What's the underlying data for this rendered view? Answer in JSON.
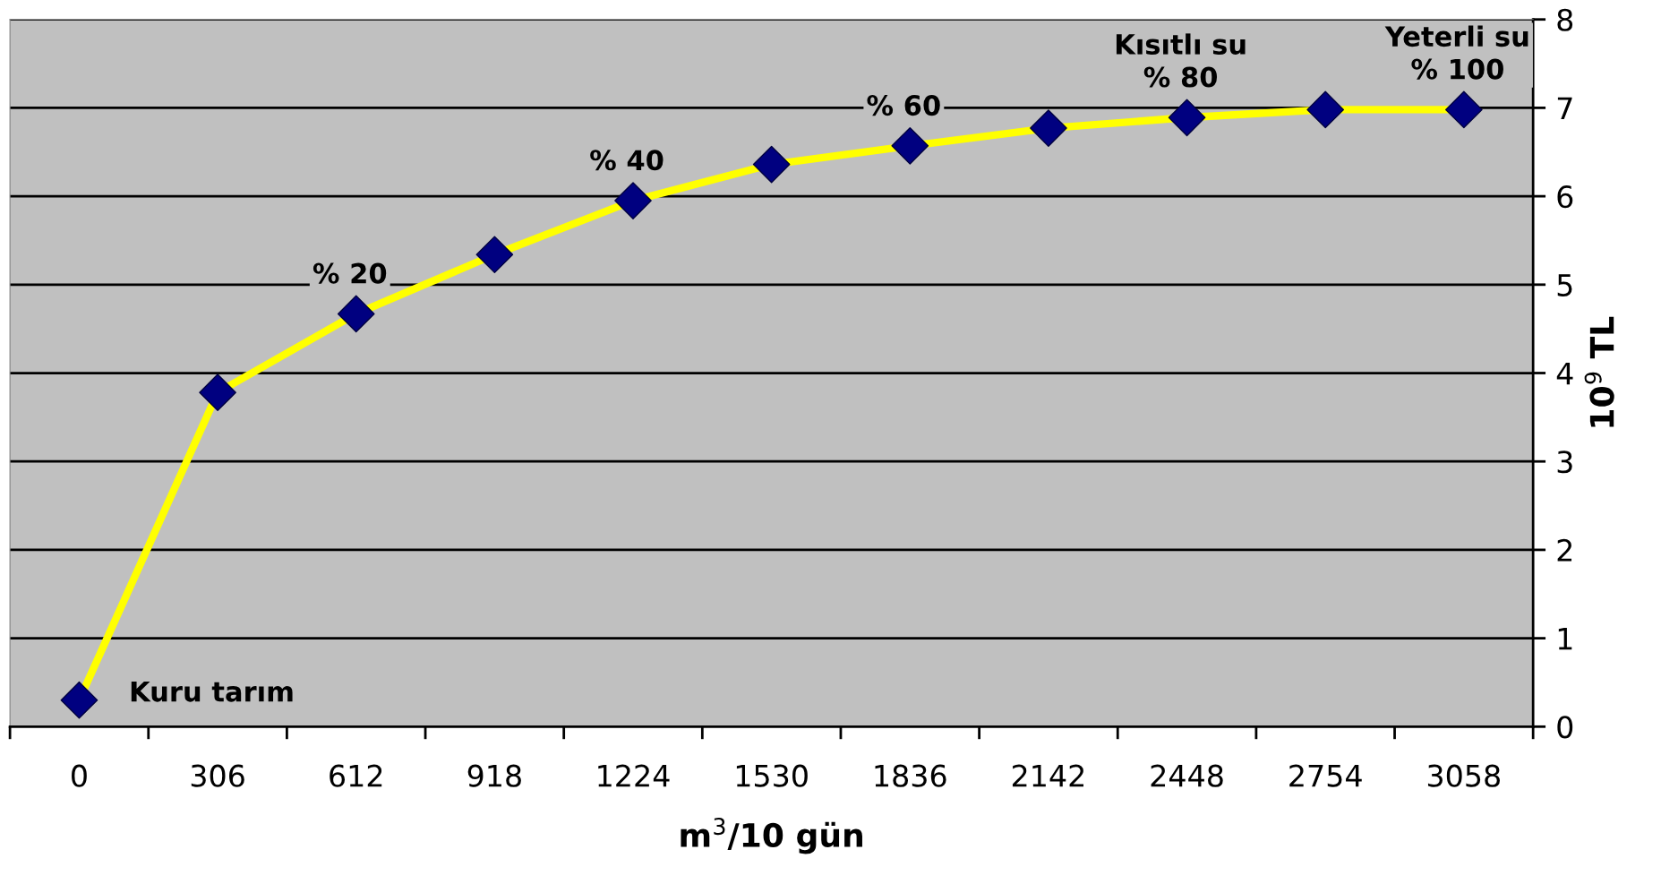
{
  "chart_data": {
    "type": "line",
    "xlabel": "m$^{3}$/10 gün",
    "ylabel": "10$^{9}$ TL",
    "categories": [
      "0",
      "306",
      "612",
      "918",
      "1224",
      "1530",
      "1836",
      "2142",
      "2448",
      "2754",
      "3058"
    ],
    "series": [
      {
        "color": "#ffff00",
        "colors": [
          "#000080",
          "#000080",
          "#000080",
          "#000080",
          "#000080",
          "#000080",
          "#000080",
          "#000080",
          "#000080",
          "#000080",
          "#000080"
        ],
        "values": [
          0.3,
          3.78,
          4.67,
          5.34,
          5.95,
          6.36,
          6.57,
          6.77,
          6.89,
          6.98,
          6.98
        ]
      }
    ],
    "ylim": [
      0,
      8
    ],
    "yticks": [
      0,
      1,
      2,
      3,
      4,
      5,
      6,
      7,
      8
    ],
    "grid": "y",
    "marker": "diamond",
    "line_style": "solid",
    "legend": false,
    "annotations": [
      {
        "text": "Kuru tarım",
        "x": "0",
        "y": 0.3
      },
      {
        "text": "% 20",
        "x": "612",
        "y": 4.67
      },
      {
        "text": "% 40",
        "x": "1224",
        "y": 5.95
      },
      {
        "text": "% 60",
        "x": "1836",
        "y": 6.57
      },
      {
        "text": "Kısıtlı su\n% 80",
        "x": "2448",
        "y": 6.89
      },
      {
        "text": "Yeterli su\n% 100",
        "x": "3058",
        "y": 6.98
      }
    ]
  }
}
